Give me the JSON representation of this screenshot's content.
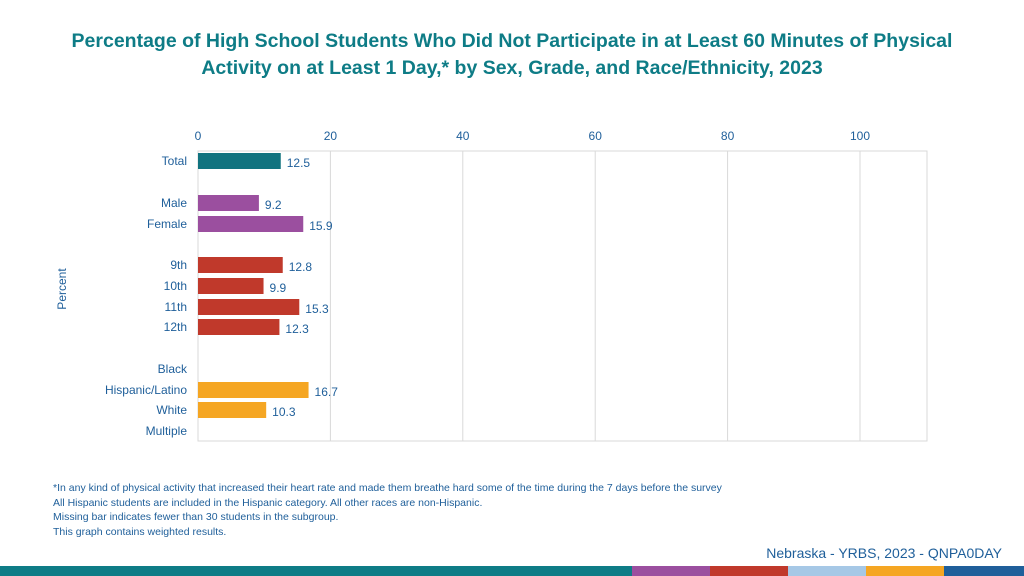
{
  "title": "Percentage of High School Students Who Did Not Participate in at Least 60 Minutes of Physical Activity on at Least 1 Day,* by Sex, Grade, and Race/Ethnicity, 2023",
  "chart_data": {
    "type": "bar",
    "orientation": "horizontal",
    "title": "Percentage of High School Students Who Did Not Participate in at Least 60 Minutes of Physical Activity on at Least 1 Day,* by Sex, Grade, and Race/Ethnicity, 2023",
    "ylabel": "Percent",
    "xlim": [
      0,
      110
    ],
    "x_ticks": [
      0,
      20,
      40,
      60,
      80,
      100
    ],
    "x_axis_position": "top",
    "grid": true,
    "categories": [
      "Total",
      "Male",
      "Female",
      "9th",
      "10th",
      "11th",
      "12th",
      "Black",
      "Hispanic/Latino",
      "White",
      "Multiple"
    ],
    "values": [
      12.5,
      9.2,
      15.9,
      12.8,
      9.9,
      15.3,
      12.3,
      null,
      16.7,
      10.3,
      null
    ],
    "value_labels": [
      "12.5",
      "9.2",
      "15.9",
      "12.8",
      "9.9",
      "15.3",
      "12.3",
      "",
      "16.7",
      "10.3",
      ""
    ],
    "groups": [
      {
        "color": "#11737f",
        "categories": [
          "Total"
        ]
      },
      {
        "color": "#9b4f9f",
        "categories": [
          "Male",
          "Female"
        ]
      },
      {
        "color": "#c0392b",
        "categories": [
          "9th",
          "10th",
          "11th",
          "12th"
        ]
      },
      {
        "color": "#f5a623",
        "categories": [
          "Black",
          "Hispanic/Latino",
          "White",
          "Multiple"
        ]
      }
    ]
  },
  "footnotes": [
    "*In any kind of physical activity that increased their heart rate and made them breathe hard some of the time during the 7 days before the survey",
    "All Hispanic students are included in the Hispanic category.  All other races are non-Hispanic.",
    "Missing bar indicates fewer than 30 students in the subgroup.",
    "This graph contains weighted results."
  ],
  "source": "Nebraska - YRBS, 2023 - QNPA0DAY",
  "colors": {
    "title": "#0e7c86",
    "text": "#1f5f9a",
    "grid": "#d9d9d9",
    "stripe": [
      "#0e7c86",
      "#9b4f9f",
      "#c0392b",
      "#a6c8e6",
      "#f5a623",
      "#1f5f9a"
    ]
  }
}
